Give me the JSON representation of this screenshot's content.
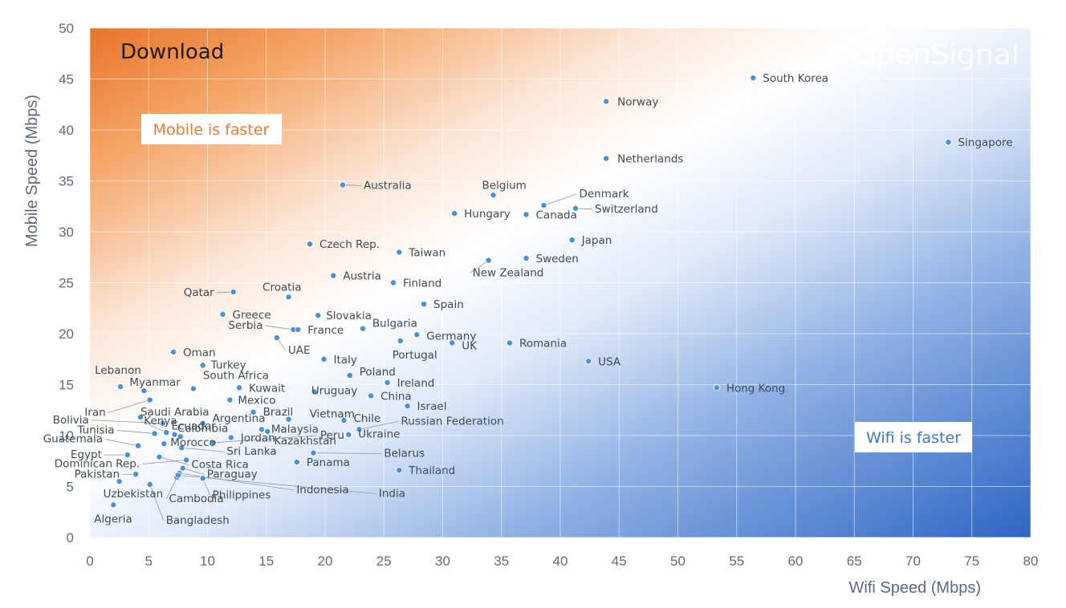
{
  "chart_data": {
    "type": "scatter",
    "title": "Download",
    "watermark": "OpenSignal",
    "xlabel": "Wifi Speed (Mbps)",
    "ylabel": "Mobile Speed (Mbps)",
    "xlim": [
      0,
      80
    ],
    "ylim": [
      0,
      50
    ],
    "xticks": [
      0,
      5,
      10,
      15,
      20,
      25,
      30,
      35,
      40,
      45,
      50,
      55,
      60,
      65,
      70,
      75,
      80
    ],
    "yticks": [
      0,
      5,
      10,
      15,
      20,
      25,
      30,
      35,
      40,
      45,
      50
    ],
    "grid": true,
    "annotations": [
      {
        "text": "Mobile is faster",
        "color": "#f07a2a"
      },
      {
        "text": "Wifi is faster",
        "color": "#3a78c8"
      }
    ],
    "colors": {
      "point": "#4a8fd8",
      "mobile_corner": "#e8742a",
      "wifi_corner": "#2f66c4"
    },
    "points": [
      {
        "label": "South Korea",
        "x": 56.4,
        "y": 45.1
      },
      {
        "label": "Norway",
        "x": 43.9,
        "y": 42.8
      },
      {
        "label": "Singapore",
        "x": 73.0,
        "y": 38.8
      },
      {
        "label": "Netherlands",
        "x": 43.9,
        "y": 37.2
      },
      {
        "label": "Australia",
        "x": 21.5,
        "y": 34.6
      },
      {
        "label": "Belgium",
        "x": 34.3,
        "y": 33.6
      },
      {
        "label": "Denmark",
        "x": 38.6,
        "y": 32.6
      },
      {
        "label": "Switzerland",
        "x": 41.3,
        "y": 32.3
      },
      {
        "label": "Hungary",
        "x": 31.0,
        "y": 31.8
      },
      {
        "label": "Canada",
        "x": 37.1,
        "y": 31.7
      },
      {
        "label": "Japan",
        "x": 41.0,
        "y": 29.2
      },
      {
        "label": "Czech Rep.",
        "x": 18.7,
        "y": 28.8
      },
      {
        "label": "Taiwan",
        "x": 26.3,
        "y": 28.0
      },
      {
        "label": "New Zealand",
        "x": 33.9,
        "y": 27.2
      },
      {
        "label": "Sweden",
        "x": 37.1,
        "y": 27.4
      },
      {
        "label": "Austria",
        "x": 20.7,
        "y": 25.7
      },
      {
        "label": "Finland",
        "x": 25.8,
        "y": 25.0
      },
      {
        "label": "Qatar",
        "x": 12.2,
        "y": 24.1
      },
      {
        "label": "Croatia",
        "x": 16.9,
        "y": 23.6
      },
      {
        "label": "Spain",
        "x": 28.4,
        "y": 22.9
      },
      {
        "label": "Greece",
        "x": 11.3,
        "y": 21.9
      },
      {
        "label": "Slovakia",
        "x": 19.4,
        "y": 21.8
      },
      {
        "label": "Serbia",
        "x": 17.3,
        "y": 20.4
      },
      {
        "label": "France",
        "x": 17.7,
        "y": 20.4
      },
      {
        "label": "Bulgaria",
        "x": 23.2,
        "y": 20.5
      },
      {
        "label": "Germany",
        "x": 27.8,
        "y": 19.9
      },
      {
        "label": "UAE",
        "x": 15.9,
        "y": 19.6
      },
      {
        "label": "Portugal",
        "x": 26.4,
        "y": 19.3
      },
      {
        "label": "UK",
        "x": 30.8,
        "y": 19.1
      },
      {
        "label": "Romania",
        "x": 35.7,
        "y": 19.1
      },
      {
        "label": "Oman",
        "x": 7.1,
        "y": 18.2
      },
      {
        "label": "Italy",
        "x": 19.9,
        "y": 17.5
      },
      {
        "label": "USA",
        "x": 42.4,
        "y": 17.3
      },
      {
        "label": "Turkey",
        "x": 9.6,
        "y": 16.9
      },
      {
        "label": "Lebanon",
        "x": 2.6,
        "y": 14.8
      },
      {
        "label": "Myanmar",
        "x": 4.6,
        "y": 14.4
      },
      {
        "label": "South Africa",
        "x": 8.8,
        "y": 14.6
      },
      {
        "label": "Kuwait",
        "x": 12.7,
        "y": 14.7
      },
      {
        "label": "Poland",
        "x": 22.1,
        "y": 15.9
      },
      {
        "label": "Ireland",
        "x": 25.3,
        "y": 15.2
      },
      {
        "label": "Uruguay",
        "x": 19.1,
        "y": 14.3
      },
      {
        "label": "Hong Kong",
        "x": 53.3,
        "y": 14.7
      },
      {
        "label": "China",
        "x": 23.9,
        "y": 13.9
      },
      {
        "label": "Iran",
        "x": 5.1,
        "y": 13.5
      },
      {
        "label": "Mexico",
        "x": 11.9,
        "y": 13.5
      },
      {
        "label": "Israel",
        "x": 27.0,
        "y": 12.9
      },
      {
        "label": "Saudi Arabia",
        "x": 4.3,
        "y": 11.8
      },
      {
        "label": "Brazil",
        "x": 13.9,
        "y": 12.3
      },
      {
        "label": "Vietnam",
        "x": 16.9,
        "y": 11.6
      },
      {
        "label": "Bolivia",
        "x": 6.2,
        "y": 11.2
      },
      {
        "label": "Argentina",
        "x": 9.6,
        "y": 11.2
      },
      {
        "label": "Chile",
        "x": 21.6,
        "y": 11.5
      },
      {
        "label": "Russian Federation",
        "x": 22.9,
        "y": 10.6
      },
      {
        "label": "Kenya",
        "x": 6.5,
        "y": 10.3
      },
      {
        "label": "Malaysia",
        "x": 14.6,
        "y": 10.6
      },
      {
        "label": "Tunisia",
        "x": 5.5,
        "y": 10.2
      },
      {
        "label": "Ecuador",
        "x": 7.2,
        "y": 10.1
      },
      {
        "label": "Colombia",
        "x": 7.7,
        "y": 9.9
      },
      {
        "label": "Jordan",
        "x": 12.0,
        "y": 9.8
      },
      {
        "label": "Kazakhstan",
        "x": 15.1,
        "y": 10.4
      },
      {
        "label": "Ukraine",
        "x": 22.0,
        "y": 10.1
      },
      {
        "label": "Guatemala",
        "x": 4.1,
        "y": 9.0
      },
      {
        "label": "Morocco",
        "x": 6.3,
        "y": 9.2
      },
      {
        "label": "Peru",
        "x": 10.5,
        "y": 9.3
      },
      {
        "label": "Egypt",
        "x": 3.2,
        "y": 8.1
      },
      {
        "label": "Sri Lanka",
        "x": 7.8,
        "y": 8.8
      },
      {
        "label": "Belarus",
        "x": 19.0,
        "y": 8.3
      },
      {
        "label": "Costa Rica",
        "x": 5.9,
        "y": 7.9
      },
      {
        "label": "Panama",
        "x": 17.6,
        "y": 7.4
      },
      {
        "label": "Dominican Rep.",
        "x": 8.2,
        "y": 7.6
      },
      {
        "label": "Paraguay",
        "x": 7.9,
        "y": 6.8
      },
      {
        "label": "Thailand",
        "x": 26.3,
        "y": 6.6
      },
      {
        "label": "Pakistan",
        "x": 3.9,
        "y": 6.2
      },
      {
        "label": "Indonesia",
        "x": 7.6,
        "y": 6.3
      },
      {
        "label": "Cambodia",
        "x": 7.4,
        "y": 5.9
      },
      {
        "label": "Uzbekistan",
        "x": 2.5,
        "y": 5.5
      },
      {
        "label": "Philippines",
        "x": 9.6,
        "y": 5.8
      },
      {
        "label": "Bangladesh",
        "x": 5.1,
        "y": 5.2
      },
      {
        "label": "India",
        "x": 7.5,
        "y": 6.1
      },
      {
        "label": "Algeria",
        "x": 2.0,
        "y": 3.2
      }
    ]
  }
}
